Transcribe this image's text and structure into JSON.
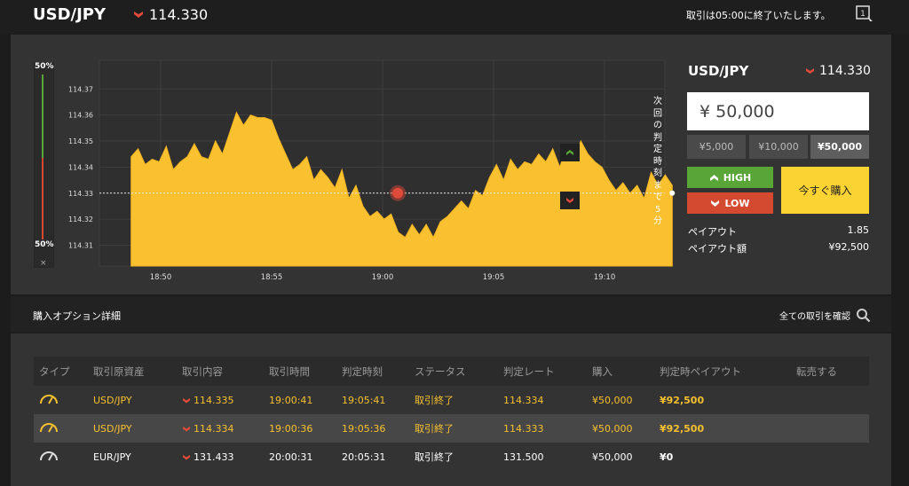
{
  "header": {
    "pair": "USD/JPY",
    "rate": "114.330",
    "notice": "取引は05:00に終了いたします。",
    "colors": {
      "down": "#e04a3a",
      "up": "#5aa538",
      "accent": "#fbd333"
    }
  },
  "gauge": {
    "top_label": "50%",
    "bottom_label": "50%",
    "high_percent": 50,
    "close": "×"
  },
  "chart_data": {
    "type": "area",
    "title": "USD/JPY",
    "x_ticks": [
      "18:50",
      "18:55",
      "19:00",
      "19:05",
      "19:10"
    ],
    "y_ticks": [
      "114.37",
      "114.36",
      "114.35",
      "114.34",
      "114.33",
      "114.32",
      "114.31"
    ],
    "ylim": [
      114.302,
      114.381
    ],
    "entry_rate": 114.33,
    "current_rate": 114.33,
    "deadline_label": "次回の判定時刻まで5分",
    "series": [
      {
        "name": "USD/JPY",
        "start_time": "18:48:40",
        "interval_seconds": 19,
        "values": [
          114.344,
          114.347,
          114.341,
          114.343,
          114.342,
          114.348,
          114.339,
          114.342,
          114.344,
          114.349,
          114.344,
          114.343,
          114.35,
          114.345,
          114.353,
          114.361,
          114.356,
          114.36,
          114.359,
          114.359,
          114.358,
          114.351,
          114.345,
          114.339,
          114.341,
          114.344,
          114.335,
          114.339,
          114.336,
          114.332,
          114.339,
          114.328,
          114.333,
          114.325,
          114.321,
          114.323,
          114.32,
          114.322,
          114.315,
          114.313,
          114.318,
          114.314,
          114.318,
          114.313,
          114.319,
          114.321,
          114.324,
          114.327,
          114.324,
          114.331,
          114.329,
          114.336,
          114.341,
          114.335,
          114.343,
          114.339,
          114.342,
          114.341,
          114.345,
          114.342,
          114.347,
          114.34,
          114.348,
          114.343,
          114.35,
          114.345,
          114.342,
          114.34,
          114.335,
          114.331,
          114.334,
          114.33,
          114.333,
          114.328,
          114.338,
          114.333,
          114.337,
          114.333
        ]
      }
    ],
    "marker": {
      "label": "low-entry"
    }
  },
  "side_buttons": {
    "high": "high-arrow",
    "low": "low-arrow"
  },
  "purchase": {
    "pair": "USD/JPY",
    "rate": "114.330",
    "amount": "¥ 50,000",
    "presets": [
      "¥5,000",
      "¥10,000",
      "¥50,000"
    ],
    "high_label": "HIGH",
    "low_label": "LOW",
    "buy_now_label": "今すぐ購入",
    "payout_label": "ペイアウト",
    "payout_value": "1.85",
    "payout_amount_label": "ペイアウト額",
    "payout_amount_value": "¥92,500"
  },
  "options": {
    "title": "購入オプション詳細",
    "view_all": "全ての取引を確認",
    "columns": [
      "タイプ",
      "取引原資産",
      "取引内容",
      "取引時間",
      "判定時刻",
      "ステータス",
      "判定レート",
      "購入",
      "判定時ペイアウト",
      "転売する"
    ],
    "rows": [
      {
        "asset": "USD/JPY",
        "content": "114.335",
        "time": "19:00:41",
        "judge_time": "19:05:41",
        "status": "取引終了",
        "judge_rate": "114.334",
        "purchase": "¥50,000",
        "payout": "¥92,500",
        "resell": ""
      },
      {
        "asset": "USD/JPY",
        "content": "114.334",
        "time": "19:00:36",
        "judge_time": "19:05:36",
        "status": "取引終了",
        "judge_rate": "114.333",
        "purchase": "¥50,000",
        "payout": "¥92,500",
        "resell": ""
      },
      {
        "asset": "EUR/JPY",
        "content": "131.433",
        "time": "20:00:31",
        "judge_time": "20:05:31",
        "status": "取引終了",
        "judge_rate": "131.500",
        "purchase": "¥50,000",
        "payout": "¥0",
        "resell": ""
      }
    ]
  }
}
